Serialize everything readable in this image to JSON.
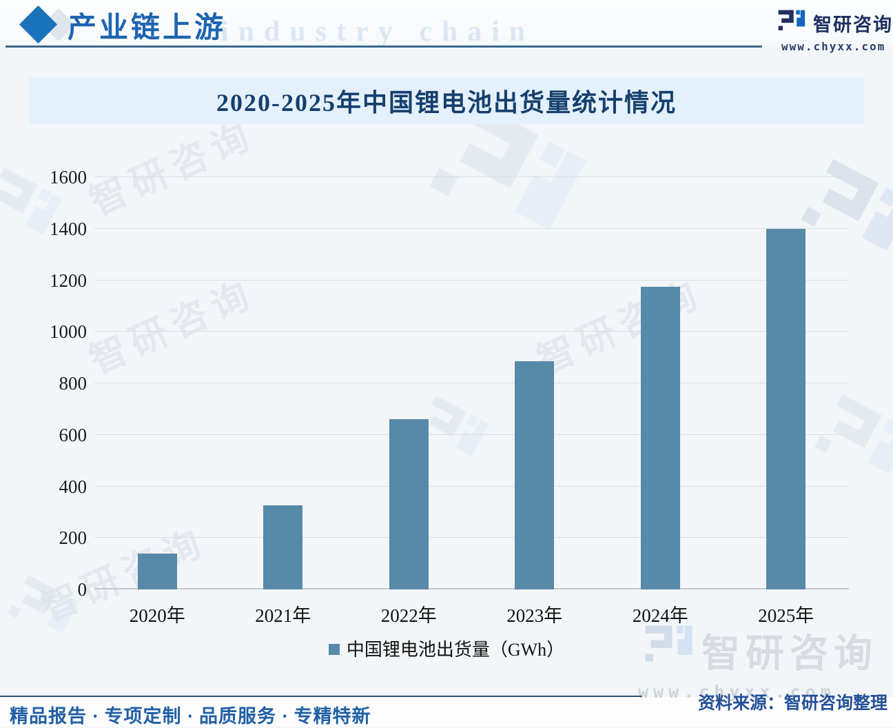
{
  "header": {
    "section_title": "产业链上游",
    "bg_watermark_text": "industry chain",
    "brand_name": "智研咨询",
    "brand_url": "www.chyxx.com"
  },
  "chart_data": {
    "type": "bar",
    "title": "2020-2025年中国锂电池出货量统计情况",
    "categories": [
      "2020年",
      "2021年",
      "2022年",
      "2023年",
      "2024年",
      "2025年"
    ],
    "values": [
      140,
      327,
      660,
      885,
      1175,
      1400
    ],
    "series_name": "中国锂电池出货量（GWh）",
    "unit": "GWh",
    "xlabel": "",
    "ylabel": "",
    "ylim": [
      0,
      1600
    ],
    "ytick_step": 200,
    "grid": true,
    "legend_position": "bottom",
    "bar_color": "#5789a9"
  },
  "source_note": "资料来源：智研咨询整理",
  "footer_services": "精品报告 · 专项定制 · 品质服务 · 专精特新",
  "watermark": {
    "brand_name": "智研咨询",
    "brand_url": "www.chyxx.com"
  },
  "colors": {
    "accent_blue": "#1e64b0",
    "bar": "#5789a9",
    "banner_bg": "#e4f1fc",
    "title_navy": "#15406e",
    "source_blue": "#24509a"
  }
}
